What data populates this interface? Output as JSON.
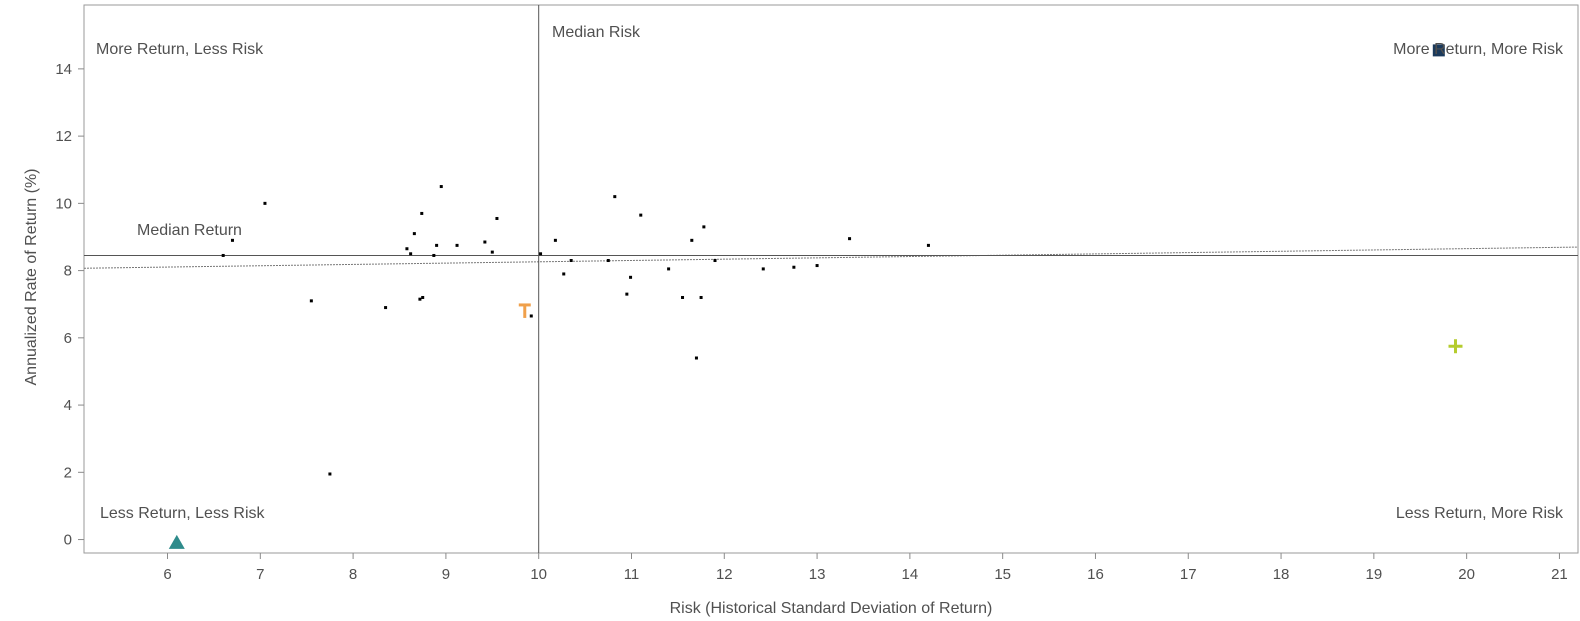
{
  "chart_data": {
    "type": "scatter",
    "title": "",
    "xlabel": "Risk (Historical Standard Deviation of Return)",
    "ylabel": "Annualized Rate of Return (%)",
    "xlim": [
      5.1,
      21.2
    ],
    "ylim": [
      -0.4,
      15.9
    ],
    "x_ticks": [
      6,
      7,
      8,
      9,
      10,
      11,
      12,
      13,
      14,
      15,
      16,
      17,
      18,
      19,
      20,
      21
    ],
    "y_ticks": [
      0,
      2,
      4,
      6,
      8,
      10,
      12,
      14
    ],
    "grid": false,
    "median_risk": 10,
    "median_return": 8.45,
    "trend_line": {
      "x": [
        5.1,
        21.2
      ],
      "y": [
        8.07,
        8.7
      ]
    },
    "quadrant_labels": {
      "top_left": "More Return, Less Risk",
      "top_right": "More Return, More Risk",
      "bottom_left": "Less Return, Less Risk",
      "bottom_right": "Less Return, More Risk"
    },
    "median_risk_label": "Median Risk",
    "median_return_label": "Median Return",
    "points": [
      {
        "x": 6.6,
        "y": 8.45
      },
      {
        "x": 6.7,
        "y": 8.9
      },
      {
        "x": 7.05,
        "y": 10.0
      },
      {
        "x": 7.55,
        "y": 7.1
      },
      {
        "x": 7.75,
        "y": 1.95
      },
      {
        "x": 8.35,
        "y": 6.9
      },
      {
        "x": 8.58,
        "y": 8.65
      },
      {
        "x": 8.62,
        "y": 8.5
      },
      {
        "x": 8.66,
        "y": 9.1
      },
      {
        "x": 8.72,
        "y": 7.15
      },
      {
        "x": 8.74,
        "y": 9.7
      },
      {
        "x": 8.75,
        "y": 7.2
      },
      {
        "x": 8.87,
        "y": 8.45
      },
      {
        "x": 8.9,
        "y": 8.75
      },
      {
        "x": 8.95,
        "y": 10.5
      },
      {
        "x": 9.12,
        "y": 8.75
      },
      {
        "x": 9.42,
        "y": 8.85
      },
      {
        "x": 9.5,
        "y": 8.55
      },
      {
        "x": 9.55,
        "y": 9.55
      },
      {
        "x": 9.92,
        "y": 6.65
      },
      {
        "x": 10.02,
        "y": 8.5
      },
      {
        "x": 10.18,
        "y": 8.9
      },
      {
        "x": 10.27,
        "y": 7.9
      },
      {
        "x": 10.35,
        "y": 8.3
      },
      {
        "x": 10.75,
        "y": 8.3
      },
      {
        "x": 10.82,
        "y": 10.2
      },
      {
        "x": 10.95,
        "y": 7.3
      },
      {
        "x": 10.99,
        "y": 7.8
      },
      {
        "x": 11.1,
        "y": 9.65
      },
      {
        "x": 11.4,
        "y": 8.05
      },
      {
        "x": 11.55,
        "y": 7.2
      },
      {
        "x": 11.65,
        "y": 8.9
      },
      {
        "x": 11.7,
        "y": 5.4
      },
      {
        "x": 11.75,
        "y": 7.2
      },
      {
        "x": 11.78,
        "y": 9.3
      },
      {
        "x": 11.9,
        "y": 8.3
      },
      {
        "x": 12.42,
        "y": 8.05
      },
      {
        "x": 12.75,
        "y": 8.1
      },
      {
        "x": 13.0,
        "y": 8.15
      },
      {
        "x": 13.35,
        "y": 8.95
      },
      {
        "x": 14.2,
        "y": 8.75
      }
    ],
    "highlighted": [
      {
        "marker": "square",
        "x": 19.7,
        "y": 14.55,
        "color": "#1b3a5c"
      },
      {
        "marker": "plus",
        "x": 19.88,
        "y": 5.75,
        "color": "#b5cc2e"
      },
      {
        "marker": "triangle",
        "x": 6.1,
        "y": -0.1,
        "color": "#2e8b8b"
      },
      {
        "marker": "t",
        "x": 9.85,
        "y": 6.8,
        "color": "#f0a04b"
      }
    ]
  }
}
